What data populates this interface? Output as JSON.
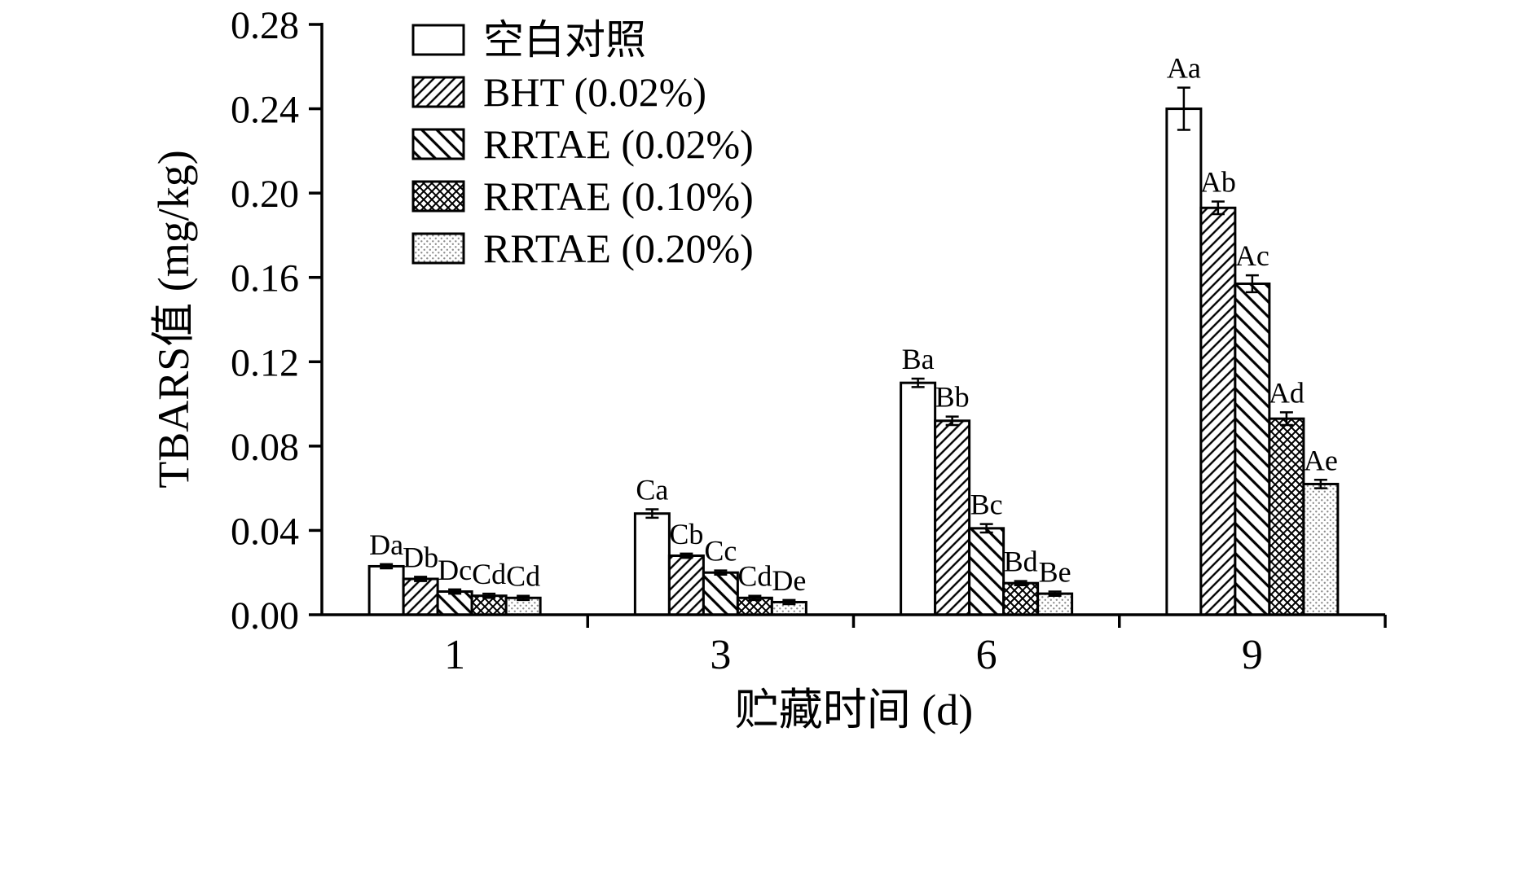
{
  "chart_data": {
    "type": "bar",
    "xlabel": "贮藏时间 (d)",
    "ylabel": "TBARS值 (mg/kg)",
    "categories": [
      "1",
      "3",
      "6",
      "9"
    ],
    "ylim": [
      0.0,
      0.28
    ],
    "ytick_step": 0.04,
    "ytick_labels": [
      "0.00",
      "0.04",
      "0.08",
      "0.12",
      "0.16",
      "0.20",
      "0.24",
      "0.28"
    ],
    "grid": false,
    "legend_position": "top-left-inside",
    "bar_edge_color": "#000000",
    "background_color": "#ffffff",
    "series": [
      {
        "name": "空白对照",
        "pattern": "none",
        "values": [
          0.023,
          0.048,
          0.11,
          0.24
        ],
        "errors": [
          0.001,
          0.002,
          0.002,
          0.01
        ],
        "sig_labels": [
          "Da",
          "Ca",
          "Ba",
          "Aa"
        ]
      },
      {
        "name": "BHT (0.02%)",
        "pattern": "diagonal-forward",
        "values": [
          0.017,
          0.028,
          0.092,
          0.193
        ],
        "errors": [
          0.001,
          0.001,
          0.002,
          0.003
        ],
        "sig_labels": [
          "Db",
          "Cb",
          "Bb",
          "Ab"
        ]
      },
      {
        "name": "RRTAE (0.02%)",
        "pattern": "diagonal-back",
        "values": [
          0.011,
          0.02,
          0.041,
          0.157
        ],
        "errors": [
          0.001,
          0.001,
          0.002,
          0.004
        ],
        "sig_labels": [
          "Dc",
          "Cc",
          "Bc",
          "Ac"
        ]
      },
      {
        "name": "RRTAE (0.10%)",
        "pattern": "crosshatch",
        "values": [
          0.009,
          0.008,
          0.015,
          0.093
        ],
        "errors": [
          0.001,
          0.001,
          0.001,
          0.003
        ],
        "sig_labels": [
          "Cd",
          "Cd",
          "Bd",
          "Ad"
        ]
      },
      {
        "name": "RRTAE (0.20%)",
        "pattern": "dots",
        "values": [
          0.008,
          0.006,
          0.01,
          0.062
        ],
        "errors": [
          0.001,
          0.001,
          0.001,
          0.002
        ],
        "sig_labels": [
          "Cd",
          "De",
          "Be",
          "Ae"
        ]
      }
    ]
  }
}
